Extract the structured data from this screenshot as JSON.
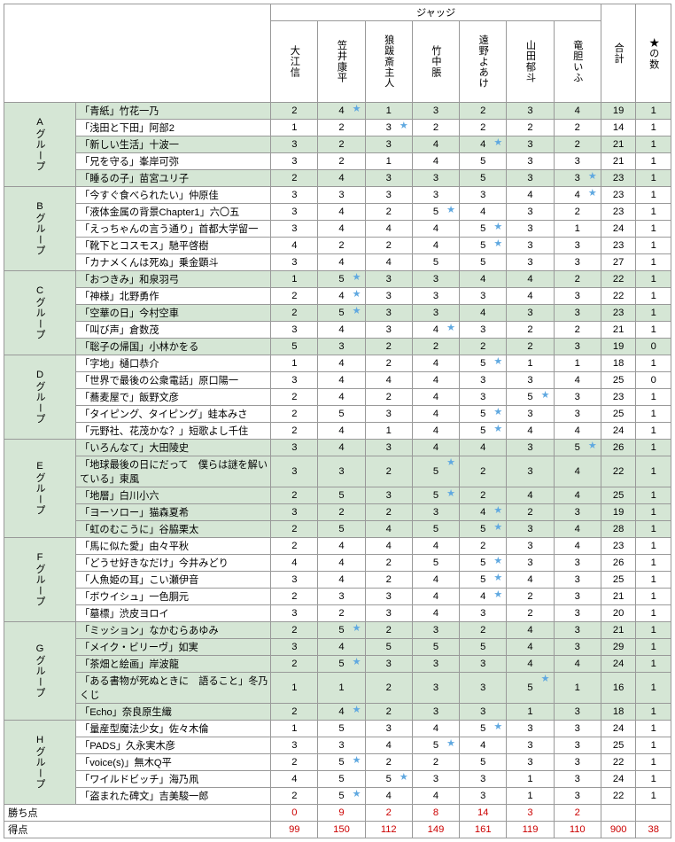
{
  "header": {
    "judges_label": "ジャッジ",
    "judges": [
      "大江信",
      "笠井康平",
      "狼跋斎主人",
      "竹中脹",
      "遠野よあけ",
      "山田郁斗",
      "竜胆いふ"
    ],
    "total": "合計",
    "stars": "★の数"
  },
  "footer": {
    "wins_label": "勝ち点",
    "wins": [
      "0",
      "9",
      "2",
      "8",
      "14",
      "3",
      "2"
    ],
    "points_label": "得点",
    "points": [
      "99",
      "150",
      "112",
      "149",
      "161",
      "119",
      "110"
    ],
    "grand_total": "900",
    "grand_stars": "38"
  },
  "groups": [
    {
      "label": "Aグループ",
      "rows": [
        {
          "g": 1,
          "t": "「青紙」竹花一乃",
          "s": [
            "2",
            "4",
            "1",
            "3",
            "2",
            "3",
            "4"
          ],
          "st": [
            0,
            1,
            0,
            0,
            0,
            0,
            0
          ],
          "tot": "19",
          "sc": "1"
        },
        {
          "g": 0,
          "t": "「浅田と下田」阿部2",
          "s": [
            "1",
            "2",
            "3",
            "2",
            "2",
            "2",
            "2"
          ],
          "st": [
            0,
            0,
            1,
            0,
            0,
            0,
            0
          ],
          "tot": "14",
          "sc": "1"
        },
        {
          "g": 1,
          "t": "「新しい生活」十波一",
          "s": [
            "3",
            "2",
            "3",
            "4",
            "4",
            "3",
            "2"
          ],
          "st": [
            0,
            0,
            0,
            0,
            1,
            0,
            0
          ],
          "tot": "21",
          "sc": "1"
        },
        {
          "g": 0,
          "t": "「兄を守る」峯岸可弥",
          "s": [
            "3",
            "2",
            "1",
            "4",
            "5",
            "3",
            "3"
          ],
          "st": [
            0,
            0,
            0,
            0,
            0,
            0,
            0
          ],
          "tot": "21",
          "sc": "1"
        },
        {
          "g": 1,
          "t": "「睡るの子」苗宮ユリ子",
          "s": [
            "2",
            "4",
            "3",
            "3",
            "5",
            "3",
            "3"
          ],
          "st": [
            0,
            0,
            0,
            0,
            0,
            0,
            1
          ],
          "tot": "23",
          "sc": "1"
        }
      ]
    },
    {
      "label": "Bグループ",
      "rows": [
        {
          "g": 0,
          "t": "「今すぐ食べられたい」仲原佳",
          "s": [
            "3",
            "3",
            "3",
            "3",
            "3",
            "4",
            "4"
          ],
          "st": [
            0,
            0,
            0,
            0,
            0,
            0,
            1
          ],
          "tot": "23",
          "sc": "1"
        },
        {
          "g": 0,
          "t": "「液体金属の背景Chapter1」六〇五",
          "s": [
            "3",
            "4",
            "2",
            "5",
            "4",
            "3",
            "2"
          ],
          "st": [
            0,
            0,
            0,
            1,
            0,
            0,
            0
          ],
          "tot": "23",
          "sc": "1"
        },
        {
          "g": 0,
          "t": "「えっちゃんの言う通り」首都大学留一",
          "s": [
            "3",
            "4",
            "4",
            "4",
            "5",
            "3",
            "1"
          ],
          "st": [
            0,
            0,
            0,
            0,
            1,
            0,
            0
          ],
          "tot": "24",
          "sc": "1"
        },
        {
          "g": 0,
          "t": "「靴下とコスモス」馳平啓樹",
          "s": [
            "4",
            "2",
            "2",
            "4",
            "5",
            "3",
            "3"
          ],
          "st": [
            0,
            0,
            0,
            0,
            1,
            0,
            0
          ],
          "tot": "23",
          "sc": "1"
        },
        {
          "g": 0,
          "t": "「カナメくんは死ぬ」乗金顕斗",
          "s": [
            "3",
            "4",
            "4",
            "5",
            "5",
            "3",
            "3"
          ],
          "st": [
            0,
            0,
            0,
            0,
            0,
            0,
            0
          ],
          "tot": "27",
          "sc": "1"
        }
      ]
    },
    {
      "label": "Cグループ",
      "rows": [
        {
          "g": 1,
          "t": "「おつきみ」和泉羽弓",
          "s": [
            "1",
            "5",
            "3",
            "3",
            "4",
            "4",
            "2"
          ],
          "st": [
            0,
            1,
            0,
            0,
            0,
            0,
            0
          ],
          "tot": "22",
          "sc": "1"
        },
        {
          "g": 0,
          "t": "「神様」北野勇作",
          "s": [
            "2",
            "4",
            "3",
            "3",
            "3",
            "4",
            "3"
          ],
          "st": [
            0,
            1,
            0,
            0,
            0,
            0,
            0
          ],
          "tot": "22",
          "sc": "1"
        },
        {
          "g": 1,
          "t": "「空華の日」今村空車",
          "s": [
            "2",
            "5",
            "3",
            "3",
            "4",
            "3",
            "3"
          ],
          "st": [
            0,
            1,
            0,
            0,
            0,
            0,
            0
          ],
          "tot": "23",
          "sc": "1"
        },
        {
          "g": 0,
          "t": "「叫び声」倉数茂",
          "s": [
            "3",
            "4",
            "3",
            "4",
            "3",
            "2",
            "2"
          ],
          "st": [
            0,
            0,
            0,
            1,
            0,
            0,
            0
          ],
          "tot": "21",
          "sc": "1"
        },
        {
          "g": 1,
          "t": "「聡子の帰国」小林かをる",
          "s": [
            "5",
            "3",
            "2",
            "2",
            "2",
            "2",
            "3"
          ],
          "st": [
            0,
            0,
            0,
            0,
            0,
            0,
            0
          ],
          "tot": "19",
          "sc": "0"
        }
      ]
    },
    {
      "label": "Dグループ",
      "rows": [
        {
          "g": 0,
          "t": "「字地」樋口恭介",
          "s": [
            "1",
            "4",
            "2",
            "4",
            "5",
            "1",
            "1"
          ],
          "st": [
            0,
            0,
            0,
            0,
            1,
            0,
            0
          ],
          "tot": "18",
          "sc": "1"
        },
        {
          "g": 0,
          "t": "「世界で最後の公衆電話」原口陽一",
          "s": [
            "3",
            "4",
            "4",
            "4",
            "3",
            "3",
            "4"
          ],
          "st": [
            0,
            0,
            0,
            0,
            0,
            0,
            0
          ],
          "tot": "25",
          "sc": "0"
        },
        {
          "g": 0,
          "t": "「蕎麦屋で」飯野文彦",
          "s": [
            "2",
            "4",
            "2",
            "4",
            "3",
            "5",
            "3"
          ],
          "st": [
            0,
            0,
            0,
            0,
            0,
            1,
            0
          ],
          "tot": "23",
          "sc": "1"
        },
        {
          "g": 0,
          "t": "「タイピング、タイピング」蛙本みさ",
          "s": [
            "2",
            "5",
            "3",
            "4",
            "5",
            "3",
            "3"
          ],
          "st": [
            0,
            0,
            0,
            0,
            1,
            0,
            0
          ],
          "tot": "25",
          "sc": "1"
        },
        {
          "g": 0,
          "t": "「元野社、花茂かな？」短歌よし千住",
          "s": [
            "2",
            "4",
            "1",
            "4",
            "5",
            "4",
            "4"
          ],
          "st": [
            0,
            0,
            0,
            0,
            1,
            0,
            0
          ],
          "tot": "24",
          "sc": "1"
        }
      ]
    },
    {
      "label": "Eグループ",
      "rows": [
        {
          "g": 1,
          "t": "「いろんなて」大田陵史",
          "s": [
            "3",
            "4",
            "3",
            "4",
            "4",
            "3",
            "5"
          ],
          "st": [
            0,
            0,
            0,
            0,
            0,
            0,
            1
          ],
          "tot": "26",
          "sc": "1"
        },
        {
          "g": 1,
          "t": "「地球最後の日にだって　僕らは謎を解いている」東風",
          "s": [
            "3",
            "3",
            "2",
            "5",
            "2",
            "3",
            "4"
          ],
          "st": [
            0,
            0,
            0,
            1,
            0,
            0,
            0
          ],
          "tot": "22",
          "sc": "1"
        },
        {
          "g": 1,
          "t": "「地層」白川小六",
          "s": [
            "2",
            "5",
            "3",
            "5",
            "2",
            "4",
            "4"
          ],
          "st": [
            0,
            0,
            0,
            1,
            0,
            0,
            0
          ],
          "tot": "25",
          "sc": "1"
        },
        {
          "g": 1,
          "t": "「ヨーソロー」猫森夏希",
          "s": [
            "3",
            "2",
            "2",
            "3",
            "4",
            "2",
            "3"
          ],
          "st": [
            0,
            0,
            0,
            0,
            1,
            0,
            0
          ],
          "tot": "19",
          "sc": "1"
        },
        {
          "g": 1,
          "t": "「虹のむこうに」谷脇栗太",
          "s": [
            "2",
            "5",
            "4",
            "5",
            "5",
            "3",
            "4"
          ],
          "st": [
            0,
            0,
            0,
            0,
            1,
            0,
            0
          ],
          "tot": "28",
          "sc": "1"
        }
      ]
    },
    {
      "label": "Fグループ",
      "rows": [
        {
          "g": 0,
          "t": "「馬に似た愛」由々平秋",
          "s": [
            "2",
            "4",
            "4",
            "4",
            "2",
            "3",
            "4"
          ],
          "st": [
            0,
            0,
            0,
            0,
            0,
            0,
            0
          ],
          "tot": "23",
          "sc": "1"
        },
        {
          "g": 0,
          "t": "「どうせ好きなだけ」今井みどり",
          "s": [
            "4",
            "4",
            "2",
            "5",
            "5",
            "3",
            "3"
          ],
          "st": [
            0,
            0,
            0,
            0,
            1,
            0,
            0
          ],
          "tot": "26",
          "sc": "1"
        },
        {
          "g": 0,
          "t": "「人魚姫の耳」こい瀬伊音",
          "s": [
            "3",
            "4",
            "2",
            "4",
            "5",
            "4",
            "3"
          ],
          "st": [
            0,
            0,
            0,
            0,
            1,
            0,
            0
          ],
          "tot": "25",
          "sc": "1"
        },
        {
          "g": 0,
          "t": "「ボウイシュ」一色胴元",
          "s": [
            "2",
            "3",
            "3",
            "4",
            "4",
            "2",
            "3"
          ],
          "st": [
            0,
            0,
            0,
            0,
            1,
            0,
            0
          ],
          "tot": "21",
          "sc": "1"
        },
        {
          "g": 0,
          "t": "「墓標」渋皮ヨロイ",
          "s": [
            "3",
            "2",
            "3",
            "4",
            "3",
            "2",
            "3"
          ],
          "st": [
            0,
            0,
            0,
            0,
            0,
            0,
            0
          ],
          "tot": "20",
          "sc": "1"
        }
      ]
    },
    {
      "label": "Gグループ",
      "rows": [
        {
          "g": 1,
          "t": "「ミッション」なかむらあゆみ",
          "s": [
            "2",
            "5",
            "2",
            "3",
            "2",
            "4",
            "3"
          ],
          "st": [
            0,
            1,
            0,
            0,
            0,
            0,
            0
          ],
          "tot": "21",
          "sc": "1"
        },
        {
          "g": 1,
          "t": "「メイク・ビリーヴ」如実",
          "s": [
            "3",
            "4",
            "5",
            "5",
            "5",
            "4",
            "3"
          ],
          "st": [
            0,
            0,
            0,
            0,
            0,
            0,
            0
          ],
          "tot": "29",
          "sc": "1"
        },
        {
          "g": 1,
          "t": "「茶畑と絵画」岸波龍",
          "s": [
            "2",
            "5",
            "3",
            "3",
            "3",
            "4",
            "4"
          ],
          "st": [
            0,
            1,
            0,
            0,
            0,
            0,
            0
          ],
          "tot": "24",
          "sc": "1"
        },
        {
          "g": 1,
          "t": "「ある書物が死ぬときに　語ること」冬乃くじ",
          "s": [
            "1",
            "1",
            "2",
            "3",
            "3",
            "5",
            "1"
          ],
          "st": [
            0,
            0,
            0,
            0,
            0,
            1,
            0
          ],
          "tot": "16",
          "sc": "1"
        },
        {
          "g": 1,
          "t": "「Echo」奈良原生織",
          "s": [
            "2",
            "4",
            "2",
            "3",
            "3",
            "1",
            "3"
          ],
          "st": [
            0,
            1,
            0,
            0,
            0,
            0,
            0
          ],
          "tot": "18",
          "sc": "1"
        }
      ]
    },
    {
      "label": "Hグループ",
      "rows": [
        {
          "g": 0,
          "t": "「量産型魔法少女」佐々木倫",
          "s": [
            "1",
            "5",
            "3",
            "4",
            "5",
            "3",
            "3"
          ],
          "st": [
            0,
            0,
            0,
            0,
            1,
            0,
            0
          ],
          "tot": "24",
          "sc": "1"
        },
        {
          "g": 0,
          "t": "「PADS」久永実木彦",
          "s": [
            "3",
            "3",
            "4",
            "5",
            "4",
            "3",
            "3"
          ],
          "st": [
            0,
            0,
            0,
            1,
            0,
            0,
            0
          ],
          "tot": "25",
          "sc": "1"
        },
        {
          "g": 0,
          "t": "「voice(s)」無木Q平",
          "s": [
            "2",
            "5",
            "2",
            "2",
            "5",
            "3",
            "3"
          ],
          "st": [
            0,
            1,
            0,
            0,
            0,
            0,
            0
          ],
          "tot": "22",
          "sc": "1"
        },
        {
          "g": 0,
          "t": "「ワイルドビッチ」海乃凧",
          "s": [
            "4",
            "5",
            "5",
            "3",
            "3",
            "1",
            "3"
          ],
          "st": [
            0,
            0,
            1,
            0,
            0,
            0,
            0
          ],
          "tot": "24",
          "sc": "1"
        },
        {
          "g": 0,
          "t": "「盗まれた碑文」吉美駿一郎",
          "s": [
            "2",
            "5",
            "4",
            "4",
            "3",
            "1",
            "3"
          ],
          "st": [
            0,
            1,
            0,
            0,
            0,
            0,
            0
          ],
          "tot": "22",
          "sc": "1"
        }
      ]
    }
  ]
}
